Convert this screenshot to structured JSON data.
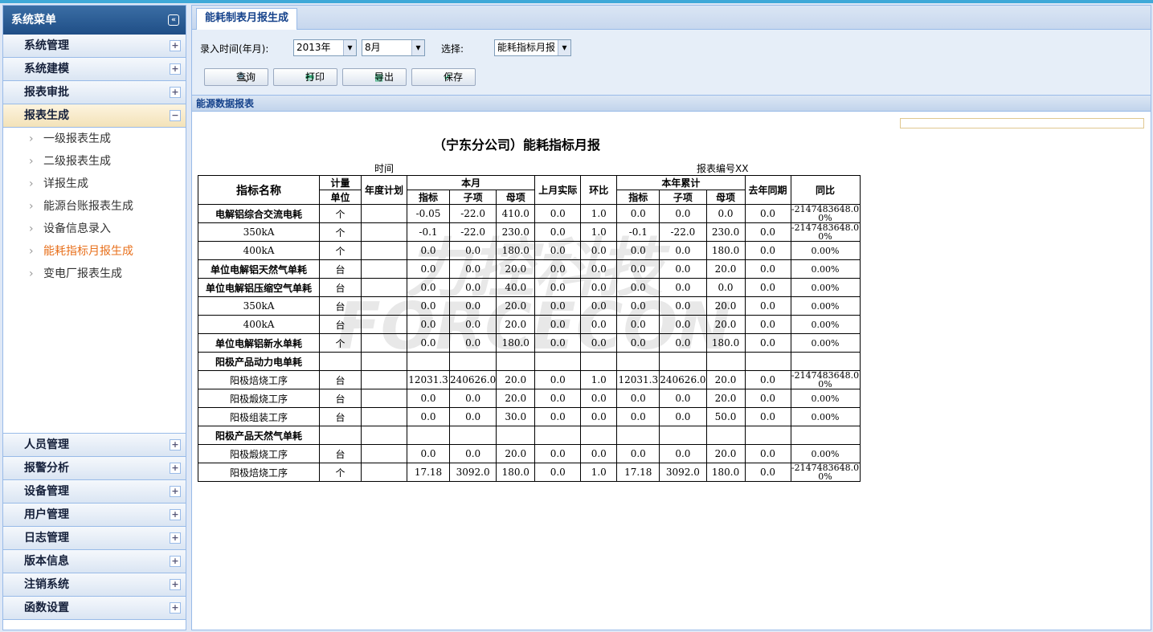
{
  "sidebar": {
    "title": "系统菜单",
    "top_groups": [
      "系统管理",
      "系统建模",
      "报表审批"
    ],
    "open_group": {
      "label": "报表生成",
      "items": [
        "一级报表生成",
        "二级报表生成",
        "详报生成",
        "能源台账报表生成",
        "设备信息录入",
        "能耗指标月报生成",
        "变电厂报表生成"
      ],
      "active": 5
    },
    "bottom_groups": [
      "人员管理",
      "报警分析",
      "设备管理",
      "用户管理",
      "日志管理",
      "版本信息",
      "注销系统",
      "函数设置"
    ]
  },
  "tab": "能耗制表月报生成",
  "form": {
    "time_label": "录入时间(年月):",
    "year": "2013年",
    "month": "8月",
    "select_label": "选择:",
    "report_type": "能耗指标月报",
    "buttons": [
      "查询",
      "打印",
      "导出",
      "保存"
    ]
  },
  "panel_title": "能源数据报表",
  "watermark": [
    "力控科技",
    "FORCECON"
  ],
  "report": {
    "title": "（宁东分公司）能耗指标月报",
    "time_label": "时间",
    "code_label": "报表编号XX",
    "header": {
      "name": "指标名称",
      "unit_top": "计量",
      "unit_bottom": "单位",
      "plan": "年度计划",
      "month": "本月",
      "month_sub": [
        "指标",
        "子项",
        "母项"
      ],
      "last_month": "上月实际",
      "mom": "环比",
      "year": "本年累计",
      "year_sub": [
        "指标",
        "子项",
        "母项"
      ],
      "last_year": "去年同期",
      "yoy": "同比"
    },
    "rows": [
      {
        "bold": true,
        "cells": [
          "电解铝综合交流电耗",
          "个",
          null,
          "-0.05",
          "-22.0",
          "410.0",
          "0.0",
          "1.0",
          "0.0",
          "0.0",
          "0.0",
          "0.0",
          "-2147483648.00%"
        ]
      },
      {
        "cells": [
          "350kA",
          "个",
          null,
          "-0.1",
          "-22.0",
          "230.0",
          "0.0",
          "1.0",
          "-0.1",
          "-22.0",
          "230.0",
          "0.0",
          "-2147483648.00%"
        ]
      },
      {
        "cells": [
          "400kA",
          "个",
          null,
          "0.0",
          "0.0",
          "180.0",
          "0.0",
          "0.0",
          "0.0",
          "0.0",
          "180.0",
          "0.0",
          "0.00%"
        ]
      },
      {
        "bold": true,
        "cells": [
          "单位电解铝天然气单耗",
          "台",
          null,
          "0.0",
          "0.0",
          "20.0",
          "0.0",
          "0.0",
          "0.0",
          "0.0",
          "20.0",
          "0.0",
          "0.00%"
        ]
      },
      {
        "bold": true,
        "cells": [
          "单位电解铝压缩空气单耗",
          "台",
          null,
          "0.0",
          "0.0",
          "40.0",
          "0.0",
          "0.0",
          "0.0",
          "0.0",
          "0.0",
          "0.0",
          "0.00%"
        ]
      },
      {
        "cells": [
          "350kA",
          "台",
          null,
          "0.0",
          "0.0",
          "20.0",
          "0.0",
          "0.0",
          "0.0",
          "0.0",
          "20.0",
          "0.0",
          "0.00%"
        ]
      },
      {
        "cells": [
          "400kA",
          "台",
          null,
          "0.0",
          "0.0",
          "20.0",
          "0.0",
          "0.0",
          "0.0",
          "0.0",
          "20.0",
          "0.0",
          "0.00%"
        ]
      },
      {
        "bold": true,
        "cells": [
          "单位电解铝新水单耗",
          "个",
          null,
          "0.0",
          "0.0",
          "180.0",
          "0.0",
          "0.0",
          "0.0",
          "0.0",
          "180.0",
          "0.0",
          "0.00%"
        ]
      },
      {
        "bold": true,
        "cells": [
          "阳极产品动力电单耗",
          null,
          null,
          null,
          null,
          null,
          null,
          null,
          null,
          null,
          null,
          null,
          null
        ]
      },
      {
        "cells": [
          "阳极焙烧工序",
          "台",
          null,
          "12031.3",
          "240626.0",
          "20.0",
          "0.0",
          "1.0",
          "12031.3",
          "240626.0",
          "20.0",
          "0.0",
          "-2147483648.00%"
        ]
      },
      {
        "cells": [
          "阳极煅烧工序",
          "台",
          null,
          "0.0",
          "0.0",
          "20.0",
          "0.0",
          "0.0",
          "0.0",
          "0.0",
          "20.0",
          "0.0",
          "0.00%"
        ]
      },
      {
        "cells": [
          "阳极组装工序",
          "台",
          null,
          "0.0",
          "0.0",
          "30.0",
          "0.0",
          "0.0",
          "0.0",
          "0.0",
          "50.0",
          "0.0",
          "0.00%"
        ]
      },
      {
        "bold": true,
        "cells": [
          "阳极产品天然气单耗",
          null,
          null,
          null,
          null,
          null,
          null,
          null,
          null,
          null,
          null,
          null,
          null
        ]
      },
      {
        "cells": [
          "阳极煅烧工序",
          "台",
          null,
          "0.0",
          "0.0",
          "20.0",
          "0.0",
          "0.0",
          "0.0",
          "0.0",
          "20.0",
          "0.0",
          "0.00%"
        ]
      },
      {
        "cells": [
          "阳极焙烧工序",
          "个",
          null,
          "17.18",
          "3092.0",
          "180.0",
          "0.0",
          "1.0",
          "17.18",
          "3092.0",
          "180.0",
          "0.0",
          "-2147483648.00%"
        ]
      }
    ]
  }
}
